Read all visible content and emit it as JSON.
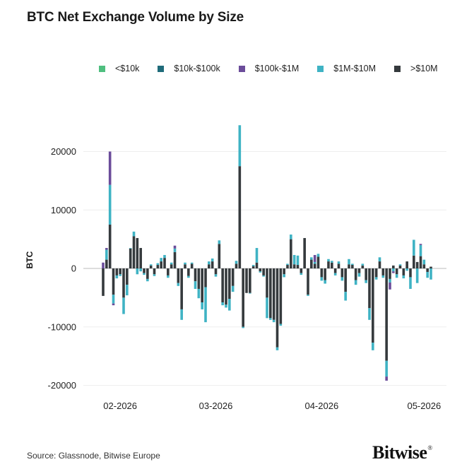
{
  "title": "BTC Net Exchange Volume by Size",
  "source": "Source: Glassnode, Bitwise Europe",
  "brand": "Bitwise",
  "brand_mark": "®",
  "colors": {
    "lt10k": "#4fbf7f",
    "s10k_100k": "#1f6b7a",
    "s100k_1m": "#6b4c9a",
    "s1m_10m": "#3fb3c4",
    "gt10m": "#353a3d",
    "grid": "#eeeeee",
    "zero": "#bbbbbb"
  },
  "chart_data": {
    "type": "bar",
    "stacked": true,
    "ylabel": "BTC",
    "xlabel": "",
    "ylim": [
      -22000,
      26000
    ],
    "yticks": [
      20000,
      10000,
      0,
      -10000,
      -20000
    ],
    "grid": true,
    "legend_position": "top",
    "xtick_labels": [
      {
        "label": "02-2026",
        "day": 5
      },
      {
        "label": "03-2026",
        "day": 33
      },
      {
        "label": "04-2026",
        "day": 64
      },
      {
        "label": "05-2026",
        "day": 94
      }
    ],
    "series": [
      {
        "name": "<$10k",
        "key": "lt10k"
      },
      {
        "name": "$10k-$100k",
        "key": "s10k_100k"
      },
      {
        "name": "$100k-$1M",
        "key": "s100k_1m"
      },
      {
        "name": "$1M-$10M",
        "key": "s1m_10m"
      },
      {
        "name": ">$10M",
        "key": "gt10m"
      }
    ],
    "bars": [
      {
        "day": 0,
        "gt10m": -4700,
        "s1m_10m": 0,
        "s100k_1m": 1000
      },
      {
        "day": 1,
        "gt10m": 1500,
        "s1m_10m": 1700,
        "s100k_1m": 300
      },
      {
        "day": 2,
        "gt10m": 7500,
        "s1m_10m": 6800,
        "s100k_1m": 5700
      },
      {
        "day": 3,
        "gt10m": -4500,
        "s1m_10m": -1500,
        "s100k_1m": -300
      },
      {
        "day": 4,
        "gt10m": -1200,
        "s1m_10m": -500
      },
      {
        "day": 5,
        "gt10m": -1000,
        "s1m_10m": -300
      },
      {
        "day": 6,
        "gt10m": -5000,
        "s1m_10m": -2800
      },
      {
        "day": 7,
        "gt10m": -2800,
        "s1m_10m": -1800
      },
      {
        "day": 8,
        "gt10m": 3400,
        "s1m_10m": 100
      },
      {
        "day": 9,
        "gt10m": 5500,
        "s1m_10m": 800
      },
      {
        "day": 10,
        "gt10m": 5200,
        "s1m_10m": -1000
      },
      {
        "day": 11,
        "gt10m": 3500,
        "s1m_10m": -500
      },
      {
        "day": 12,
        "gt10m": -800,
        "s1m_10m": -300
      },
      {
        "day": 13,
        "gt10m": -1800,
        "s1m_10m": -400
      },
      {
        "day": 14,
        "gt10m": 500,
        "s1m_10m": 200
      },
      {
        "day": 15,
        "gt10m": -1000,
        "s1m_10m": -300
      },
      {
        "day": 16,
        "gt10m": 600,
        "s1m_10m": 300
      },
      {
        "day": 17,
        "gt10m": 1200,
        "s1m_10m": 600
      },
      {
        "day": 18,
        "gt10m": 1800,
        "s1m_10m": 500
      },
      {
        "day": 19,
        "gt10m": -1200,
        "s1m_10m": -400
      },
      {
        "day": 20,
        "gt10m": 700,
        "s1m_10m": 300
      },
      {
        "day": 21,
        "gt10m": 2800,
        "s1m_10m": 600,
        "s100k_1m": 500
      },
      {
        "day": 22,
        "gt10m": -2500,
        "s1m_10m": -500
      },
      {
        "day": 23,
        "gt10m": -7000,
        "s1m_10m": -1800
      },
      {
        "day": 24,
        "gt10m": 700,
        "s1m_10m": 300
      },
      {
        "day": 25,
        "gt10m": -1300,
        "s1m_10m": -300
      },
      {
        "day": 26,
        "gt10m": 800,
        "s1m_10m": 200
      },
      {
        "day": 27,
        "gt10m": -2200,
        "s1m_10m": -1300
      },
      {
        "day": 28,
        "gt10m": -3500,
        "s1m_10m": -1600
      },
      {
        "day": 29,
        "gt10m": -5800,
        "s1m_10m": -1200
      },
      {
        "day": 30,
        "gt10m": -3200,
        "s1m_10m": -6000
      },
      {
        "day": 31,
        "gt10m": 700,
        "s1m_10m": 500
      },
      {
        "day": 32,
        "gt10m": 1200,
        "s1m_10m": 500
      },
      {
        "day": 33,
        "gt10m": -1000,
        "s1m_10m": -400
      },
      {
        "day": 34,
        "gt10m": 4200,
        "s1m_10m": 600
      },
      {
        "day": 35,
        "gt10m": -5800,
        "s1m_10m": -500
      },
      {
        "day": 36,
        "gt10m": -6200,
        "s1m_10m": -500
      },
      {
        "day": 37,
        "gt10m": -5200,
        "s1m_10m": -2000
      },
      {
        "day": 38,
        "gt10m": -3000,
        "s1m_10m": -1000
      },
      {
        "day": 39,
        "gt10m": 800,
        "s1m_10m": 500
      },
      {
        "day": 40,
        "gt10m": 17500,
        "s1m_10m": 7000
      },
      {
        "day": 41,
        "gt10m": -10000,
        "s1m_10m": -200
      },
      {
        "day": 42,
        "gt10m": -4200,
        "s1m_10m": 0
      },
      {
        "day": 43,
        "gt10m": -4200,
        "s1m_10m": -100
      },
      {
        "day": 44,
        "gt10m": 400,
        "s1m_10m": 200
      },
      {
        "day": 45,
        "gt10m": 1000,
        "s1m_10m": 2500
      },
      {
        "day": 46,
        "gt10m": -500,
        "s1m_10m": -200
      },
      {
        "day": 47,
        "gt10m": -1200,
        "s1m_10m": -200
      },
      {
        "day": 48,
        "gt10m": -5000,
        "s1m_10m": -3500
      },
      {
        "day": 49,
        "gt10m": -8500,
        "s1m_10m": -300
      },
      {
        "day": 50,
        "gt10m": -8800,
        "s1m_10m": -400
      },
      {
        "day": 51,
        "gt10m": -13500,
        "s1m_10m": -500
      },
      {
        "day": 52,
        "gt10m": -9500,
        "s1m_10m": -300
      },
      {
        "day": 53,
        "gt10m": -1000,
        "s1m_10m": -500
      },
      {
        "day": 54,
        "gt10m": 600,
        "s1m_10m": 200
      },
      {
        "day": 55,
        "gt10m": 5000,
        "s1m_10m": 800
      },
      {
        "day": 56,
        "gt10m": 700,
        "s1m_10m": 1600
      },
      {
        "day": 57,
        "gt10m": 600,
        "s1m_10m": 1600
      },
      {
        "day": 58,
        "gt10m": -800,
        "s1m_10m": -300
      },
      {
        "day": 59,
        "gt10m": 5200,
        "s1m_10m": 0
      },
      {
        "day": 60,
        "gt10m": -4500,
        "s1m_10m": -200
      },
      {
        "day": 61,
        "gt10m": 1500,
        "s1m_10m": 400
      },
      {
        "day": 62,
        "gt10m": 800,
        "s1m_10m": 300,
        "s100k_1m": 1200
      },
      {
        "day": 63,
        "gt10m": 2000,
        "s1m_10m": 500
      },
      {
        "day": 64,
        "gt10m": -1500,
        "s1m_10m": -600
      },
      {
        "day": 65,
        "gt10m": -2000,
        "s1m_10m": -600
      },
      {
        "day": 66,
        "gt10m": 1200,
        "s1m_10m": 400
      },
      {
        "day": 67,
        "gt10m": 1000,
        "s1m_10m": 300
      },
      {
        "day": 68,
        "gt10m": -800,
        "s1m_10m": -400
      },
      {
        "day": 69,
        "gt10m": 800,
        "s1m_10m": 400
      },
      {
        "day": 70,
        "gt10m": -1500,
        "s1m_10m": -600
      },
      {
        "day": 71,
        "gt10m": -4000,
        "s1m_10m": -1500
      },
      {
        "day": 72,
        "gt10m": 700,
        "s1m_10m": 900
      },
      {
        "day": 73,
        "gt10m": 600,
        "s1m_10m": 200
      },
      {
        "day": 74,
        "gt10m": -2000,
        "s1m_10m": -800
      },
      {
        "day": 75,
        "gt10m": -800,
        "s1m_10m": -600
      },
      {
        "day": 76,
        "gt10m": 500,
        "s1m_10m": 300
      },
      {
        "day": 77,
        "gt10m": -2000,
        "s1m_10m": -500
      },
      {
        "day": 78,
        "gt10m": -6800,
        "s1m_10m": -2000
      },
      {
        "day": 79,
        "gt10m": -12700,
        "s1m_10m": -1300
      },
      {
        "day": 80,
        "gt10m": -1500,
        "s1m_10m": -400
      },
      {
        "day": 81,
        "gt10m": 1200,
        "s1m_10m": 700
      },
      {
        "day": 82,
        "gt10m": -1200,
        "s1m_10m": -400
      },
      {
        "day": 83,
        "gt10m": -15800,
        "s1m_10m": -2700,
        "s100k_1m": -700
      },
      {
        "day": 84,
        "gt10m": -1800,
        "s1m_10m": -600,
        "s100k_1m": -1200
      },
      {
        "day": 85,
        "gt10m": 500,
        "s1m_10m": -500,
        "s100k_1m": -300
      },
      {
        "day": 86,
        "gt10m": -1000,
        "s1m_10m": -600
      },
      {
        "day": 87,
        "gt10m": 500,
        "s1m_10m": 200
      },
      {
        "day": 88,
        "gt10m": -1200,
        "s1m_10m": -500
      },
      {
        "day": 89,
        "gt10m": 1200,
        "s1m_10m": -400
      },
      {
        "day": 90,
        "gt10m": -1500,
        "s1m_10m": -2000
      },
      {
        "day": 91,
        "gt10m": 2200,
        "s1m_10m": 2700
      },
      {
        "day": 92,
        "gt10m": 1100,
        "s1m_10m": -2500
      },
      {
        "day": 93,
        "gt10m": 2100,
        "s1m_10m": 1900,
        "s100k_1m": 200
      },
      {
        "day": 94,
        "gt10m": 700,
        "s1m_10m": 800
      },
      {
        "day": 95,
        "gt10m": -600,
        "s1m_10m": -1000
      },
      {
        "day": 96,
        "gt10m": 300,
        "s1m_10m": -1900
      }
    ]
  }
}
